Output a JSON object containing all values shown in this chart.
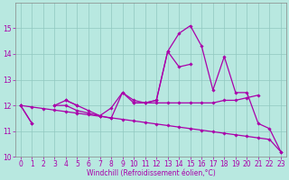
{
  "xlabel": "Windchill (Refroidissement éolien,°C)",
  "background_color": "#b8e8e0",
  "grid_color": "#90c8c0",
  "line_color": "#aa00aa",
  "x_hours": [
    0,
    1,
    2,
    3,
    4,
    5,
    6,
    7,
    8,
    9,
    10,
    11,
    12,
    13,
    14,
    15,
    16,
    17,
    18,
    19,
    20,
    21,
    22,
    23
  ],
  "series1": [
    12.0,
    11.3,
    null,
    12.0,
    12.2,
    12.0,
    11.8,
    11.6,
    11.5,
    12.5,
    12.1,
    12.1,
    12.2,
    14.1,
    13.5,
    13.6,
    null,
    null,
    null,
    null,
    null,
    null,
    null,
    null
  ],
  "series2": [
    12.0,
    null,
    null,
    null,
    12.2,
    12.0,
    null,
    null,
    null,
    null,
    12.1,
    12.1,
    12.2,
    14.1,
    14.8,
    15.1,
    14.3,
    12.6,
    13.9,
    12.5,
    12.5,
    11.3,
    11.1,
    10.2
  ],
  "series3": [
    12.0,
    11.3,
    null,
    12.0,
    12.0,
    11.8,
    11.7,
    11.6,
    11.9,
    12.5,
    12.2,
    12.1,
    12.1,
    12.1,
    12.1,
    12.1,
    12.1,
    12.1,
    12.2,
    12.2,
    12.3,
    12.4,
    null,
    null
  ],
  "series4": [
    12.0,
    11.94,
    11.88,
    11.82,
    11.76,
    11.7,
    11.64,
    11.58,
    11.52,
    11.46,
    11.4,
    11.34,
    11.28,
    11.22,
    11.16,
    11.1,
    11.04,
    10.98,
    10.92,
    10.86,
    10.8,
    10.74,
    10.68,
    10.2
  ],
  "ylim": [
    10,
    16
  ],
  "xlim": [
    -0.5,
    23.5
  ],
  "yticks": [
    10,
    11,
    12,
    13,
    14,
    15
  ],
  "xticks": [
    0,
    1,
    2,
    3,
    4,
    5,
    6,
    7,
    8,
    9,
    10,
    11,
    12,
    13,
    14,
    15,
    16,
    17,
    18,
    19,
    20,
    21,
    22,
    23
  ],
  "tick_fontsize": 5.5,
  "xlabel_fontsize": 5.5,
  "marker_size": 1.8,
  "line_width": 0.9
}
